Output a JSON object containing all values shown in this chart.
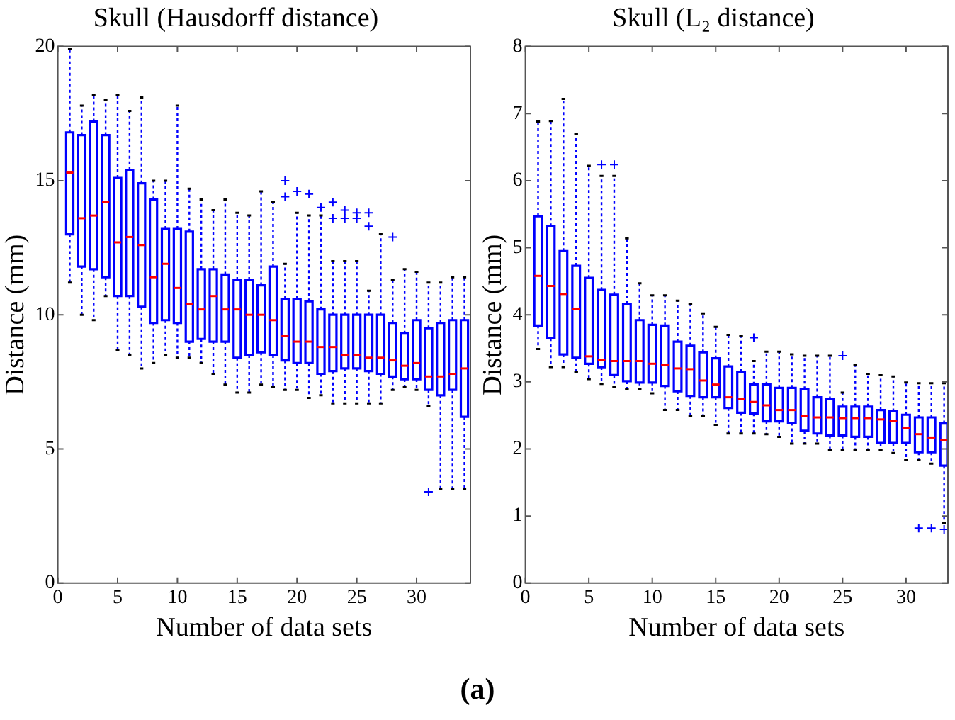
{
  "chart_data": [
    {
      "type": "box",
      "title": "Skull (Hausdorff distance)",
      "xlabel": "Number of data sets",
      "ylabel": "Distance (mm)",
      "annotations": [
        "(a)"
      ],
      "x": [
        1,
        2,
        3,
        4,
        5,
        6,
        7,
        8,
        9,
        10,
        11,
        12,
        13,
        14,
        15,
        16,
        17,
        18,
        19,
        20,
        21,
        22,
        23,
        24,
        25,
        26,
        27,
        28,
        29,
        30,
        31,
        32,
        33,
        34
      ],
      "xlim": [
        0,
        34.5
      ],
      "xticks": [
        0,
        5,
        10,
        15,
        20,
        25,
        30
      ],
      "ylim": [
        0,
        20
      ],
      "yticks": [
        0,
        5,
        10,
        15,
        20
      ],
      "legend": false,
      "series": [
        {
          "color": "#0000ff",
          "boxes": [
            {
              "low": 11.2,
              "q1": 13.0,
              "median": 15.3,
              "q3": 16.8,
              "high": 19.9
            },
            {
              "low": 10.0,
              "q1": 11.8,
              "median": 13.6,
              "q3": 16.7,
              "high": 17.8
            },
            {
              "low": 9.8,
              "q1": 11.7,
              "median": 13.7,
              "q3": 17.2,
              "high": 18.2
            },
            {
              "low": 10.7,
              "q1": 11.4,
              "median": 14.2,
              "q3": 16.7,
              "high": 18.0
            },
            {
              "low": 8.7,
              "q1": 10.7,
              "median": 12.7,
              "q3": 15.1,
              "high": 18.2
            },
            {
              "low": 8.5,
              "q1": 10.7,
              "median": 12.9,
              "q3": 15.4,
              "high": 17.6
            },
            {
              "low": 8.0,
              "q1": 10.3,
              "median": 12.6,
              "q3": 14.9,
              "high": 18.1
            },
            {
              "low": 8.2,
              "q1": 9.7,
              "median": 11.4,
              "q3": 14.3,
              "high": 15.0
            },
            {
              "low": 8.5,
              "q1": 9.8,
              "median": 11.9,
              "q3": 13.2,
              "high": 15.0
            },
            {
              "low": 8.4,
              "q1": 9.7,
              "median": 11.0,
              "q3": 13.2,
              "high": 17.8
            },
            {
              "low": 8.4,
              "q1": 9.0,
              "median": 10.4,
              "q3": 13.1,
              "high": 14.7
            },
            {
              "low": 8.2,
              "q1": 9.1,
              "median": 10.2,
              "q3": 11.7,
              "high": 14.3
            },
            {
              "low": 7.8,
              "q1": 9.0,
              "median": 10.7,
              "q3": 11.7,
              "high": 13.9
            },
            {
              "low": 7.4,
              "q1": 9.0,
              "median": 10.2,
              "q3": 11.5,
              "high": 14.3
            },
            {
              "low": 7.1,
              "q1": 8.4,
              "median": 10.2,
              "q3": 11.3,
              "high": 13.8
            },
            {
              "low": 7.1,
              "q1": 8.5,
              "median": 10.0,
              "q3": 11.3,
              "high": 13.7
            },
            {
              "low": 7.4,
              "q1": 8.6,
              "median": 10.0,
              "q3": 11.1,
              "high": 14.6
            },
            {
              "low": 7.3,
              "q1": 8.5,
              "median": 9.8,
              "q3": 11.8,
              "high": 14.2
            },
            {
              "low": 7.2,
              "q1": 8.3,
              "median": 9.2,
              "q3": 10.6,
              "high": 11.9,
              "outliers": [
                15.0,
                14.4
              ]
            },
            {
              "low": 7.2,
              "q1": 8.2,
              "median": 9.0,
              "q3": 10.6,
              "high": 13.8,
              "outliers": [
                14.6
              ]
            },
            {
              "low": 6.9,
              "q1": 8.2,
              "median": 9.0,
              "q3": 10.5,
              "high": 13.7,
              "outliers": [
                14.5
              ]
            },
            {
              "low": 7.0,
              "q1": 7.8,
              "median": 8.8,
              "q3": 10.2,
              "high": 13.7,
              "outliers": [
                14.0
              ]
            },
            {
              "low": 6.7,
              "q1": 7.9,
              "median": 8.8,
              "q3": 10.0,
              "high": 12.0,
              "outliers": [
                14.2,
                13.6
              ]
            },
            {
              "low": 6.7,
              "q1": 8.0,
              "median": 8.5,
              "q3": 10.0,
              "high": 12.0,
              "outliers": [
                13.9,
                13.6
              ]
            },
            {
              "low": 6.7,
              "q1": 8.0,
              "median": 8.5,
              "q3": 10.0,
              "high": 12.0,
              "outliers": [
                13.8,
                13.6
              ]
            },
            {
              "low": 6.7,
              "q1": 7.9,
              "median": 8.4,
              "q3": 10.0,
              "high": 10.9,
              "outliers": [
                13.8,
                13.3
              ]
            },
            {
              "low": 6.7,
              "q1": 7.8,
              "median": 8.4,
              "q3": 10.0,
              "high": 13.0
            },
            {
              "low": 7.2,
              "q1": 7.7,
              "median": 8.3,
              "q3": 9.7,
              "high": 11.3,
              "outliers": [
                12.9
              ]
            },
            {
              "low": 7.3,
              "q1": 7.6,
              "median": 8.1,
              "q3": 9.3,
              "high": 11.7
            },
            {
              "low": 7.2,
              "q1": 7.6,
              "median": 8.2,
              "q3": 9.8,
              "high": 11.6
            },
            {
              "low": 6.6,
              "q1": 7.2,
              "median": 7.7,
              "q3": 9.5,
              "high": 11.2,
              "outliers": [
                3.4
              ]
            },
            {
              "low": 3.5,
              "q1": 7.0,
              "median": 7.7,
              "q3": 9.7,
              "high": 11.2
            },
            {
              "low": 3.5,
              "q1": 7.2,
              "median": 7.8,
              "q3": 9.8,
              "high": 11.4
            },
            {
              "low": 3.5,
              "q1": 6.2,
              "median": 8.0,
              "q3": 9.8,
              "high": 11.4
            }
          ]
        }
      ]
    },
    {
      "type": "box",
      "title": "Skull (L₂ distance)",
      "xlabel": "Number of data sets",
      "ylabel": "Distance (mm)",
      "x": [
        1,
        2,
        3,
        4,
        5,
        6,
        7,
        8,
        9,
        10,
        11,
        12,
        13,
        14,
        15,
        16,
        17,
        18,
        19,
        20,
        21,
        22,
        23,
        24,
        25,
        26,
        27,
        28,
        29,
        30,
        31,
        32,
        33
      ],
      "xlim": [
        0,
        33.3
      ],
      "xticks": [
        0,
        5,
        10,
        15,
        20,
        25,
        30
      ],
      "ylim": [
        0,
        8
      ],
      "yticks": [
        0,
        1,
        2,
        3,
        4,
        5,
        6,
        7,
        8
      ],
      "legend": false,
      "series": [
        {
          "color": "#0000ff",
          "boxes": [
            {
              "low": 3.49,
              "q1": 3.84,
              "median": 4.58,
              "q3": 5.47,
              "high": 6.88
            },
            {
              "low": 3.22,
              "q1": 3.65,
              "median": 4.43,
              "q3": 5.32,
              "high": 6.89
            },
            {
              "low": 3.22,
              "q1": 3.41,
              "median": 4.31,
              "q3": 4.95,
              "high": 7.22
            },
            {
              "low": 3.14,
              "q1": 3.36,
              "median": 4.09,
              "q3": 4.73,
              "high": 6.7
            },
            {
              "low": 3.04,
              "q1": 3.27,
              "median": 3.38,
              "q3": 4.55,
              "high": 6.22
            },
            {
              "low": 2.97,
              "q1": 3.22,
              "median": 3.33,
              "q3": 4.37,
              "high": 6.07,
              "outliers": [
                6.24
              ]
            },
            {
              "low": 2.93,
              "q1": 3.1,
              "median": 3.31,
              "q3": 4.3,
              "high": 6.07,
              "outliers": [
                6.24
              ]
            },
            {
              "low": 2.89,
              "q1": 3.01,
              "median": 3.31,
              "q3": 4.16,
              "high": 5.14
            },
            {
              "low": 2.89,
              "q1": 2.99,
              "median": 3.31,
              "q3": 3.92,
              "high": 4.47
            },
            {
              "low": 2.83,
              "q1": 2.99,
              "median": 3.27,
              "q3": 3.85,
              "high": 4.29
            },
            {
              "low": 2.58,
              "q1": 2.94,
              "median": 3.25,
              "q3": 3.84,
              "high": 4.29
            },
            {
              "low": 2.58,
              "q1": 2.86,
              "median": 3.2,
              "q3": 3.6,
              "high": 4.21
            },
            {
              "low": 2.49,
              "q1": 2.79,
              "median": 3.19,
              "q3": 3.54,
              "high": 4.16
            },
            {
              "low": 2.49,
              "q1": 2.77,
              "median": 3.02,
              "q3": 3.44,
              "high": 4.02
            },
            {
              "low": 2.36,
              "q1": 2.77,
              "median": 2.96,
              "q3": 3.35,
              "high": 3.82
            },
            {
              "low": 2.23,
              "q1": 2.61,
              "median": 2.77,
              "q3": 3.23,
              "high": 3.7
            },
            {
              "low": 2.23,
              "q1": 2.54,
              "median": 2.74,
              "q3": 3.15,
              "high": 3.68
            },
            {
              "low": 2.23,
              "q1": 2.53,
              "median": 2.7,
              "q3": 2.96,
              "high": 3.31,
              "outliers": [
                3.66
              ]
            },
            {
              "low": 2.22,
              "q1": 2.41,
              "median": 2.65,
              "q3": 2.96,
              "high": 3.45
            },
            {
              "low": 2.18,
              "q1": 2.41,
              "median": 2.58,
              "q3": 2.91,
              "high": 3.45
            },
            {
              "low": 2.08,
              "q1": 2.39,
              "median": 2.58,
              "q3": 2.91,
              "high": 3.41
            },
            {
              "low": 2.08,
              "q1": 2.27,
              "median": 2.49,
              "q3": 2.89,
              "high": 3.39
            },
            {
              "low": 2.08,
              "q1": 2.23,
              "median": 2.47,
              "q3": 2.77,
              "high": 3.39
            },
            {
              "low": 1.99,
              "q1": 2.2,
              "median": 2.47,
              "q3": 2.74,
              "high": 3.39
            },
            {
              "low": 1.99,
              "q1": 2.2,
              "median": 2.46,
              "q3": 2.63,
              "high": 2.84,
              "outliers": [
                3.39
              ]
            },
            {
              "low": 1.99,
              "q1": 2.18,
              "median": 2.46,
              "q3": 2.63,
              "high": 3.25
            },
            {
              "low": 1.99,
              "q1": 2.18,
              "median": 2.46,
              "q3": 2.63,
              "high": 3.12
            },
            {
              "low": 1.99,
              "q1": 2.09,
              "median": 2.44,
              "q3": 2.58,
              "high": 3.1
            },
            {
              "low": 1.94,
              "q1": 2.09,
              "median": 2.42,
              "q3": 2.56,
              "high": 3.08
            },
            {
              "low": 1.84,
              "q1": 2.09,
              "median": 2.31,
              "q3": 2.51,
              "high": 2.99
            },
            {
              "low": 1.84,
              "q1": 1.95,
              "median": 2.22,
              "q3": 2.47,
              "high": 2.98,
              "outliers": [
                0.82
              ]
            },
            {
              "low": 1.78,
              "q1": 1.95,
              "median": 2.17,
              "q3": 2.47,
              "high": 2.98,
              "outliers": [
                0.82
              ]
            },
            {
              "low": 0.9,
              "q1": 1.75,
              "median": 2.13,
              "q3": 2.38,
              "high": 2.98,
              "outliers": [
                0.8
              ]
            }
          ]
        }
      ]
    }
  ]
}
